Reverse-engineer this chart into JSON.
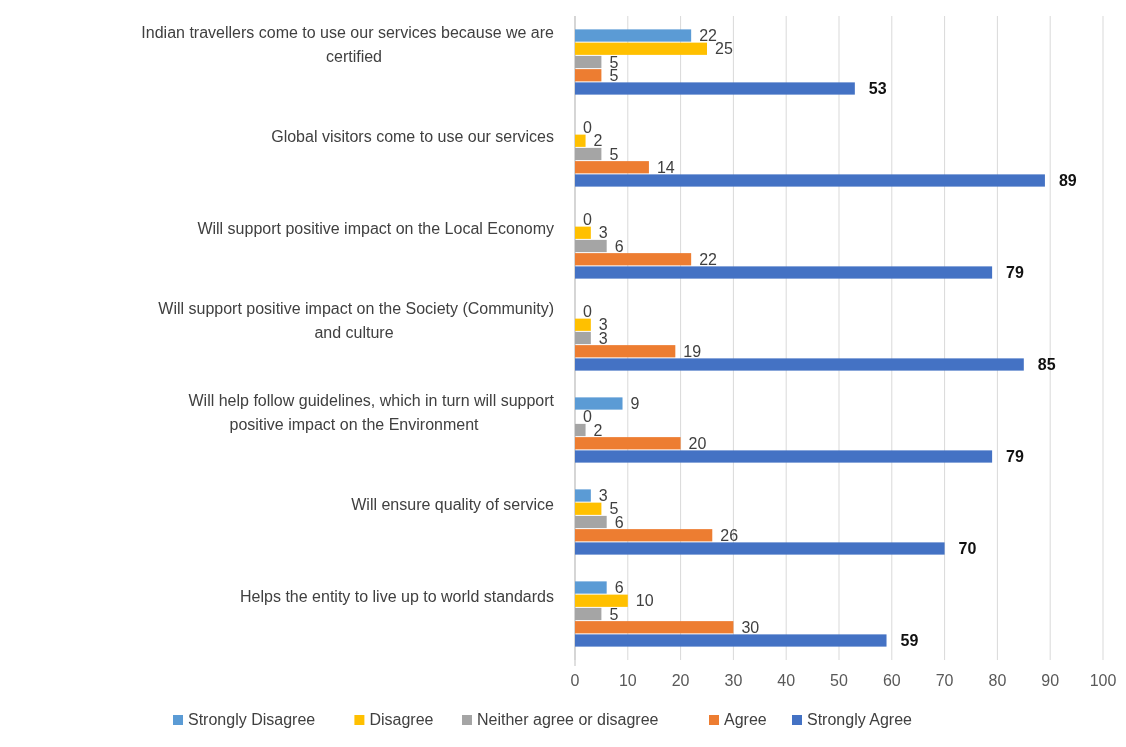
{
  "chart_data": {
    "type": "bar",
    "orientation": "horizontal",
    "categories": [
      "Indian travellers come to use our services because we are certified",
      "Global visitors come to use our services",
      "Will support positive impact on the Local Economy",
      "Will support positive impact on the Society (Community) and culture",
      "Will help follow guidelines, which in turn will support positive impact on the Environment",
      "Will ensure quality of service",
      "Helps the entity to live up to world standards"
    ],
    "series": [
      {
        "name": "Strongly Disagree",
        "color": "#5b9bd5",
        "values": [
          22,
          0,
          0,
          0,
          9,
          3,
          6
        ]
      },
      {
        "name": "Disagree",
        "color": "#ffc000",
        "values": [
          25,
          2,
          3,
          3,
          0,
          5,
          10
        ]
      },
      {
        "name": "Neither agree or disagree",
        "color": "#a5a5a5",
        "values": [
          5,
          5,
          6,
          3,
          2,
          6,
          5
        ]
      },
      {
        "name": "Agree",
        "color": "#ed7d31",
        "values": [
          5,
          14,
          22,
          19,
          20,
          26,
          30
        ]
      },
      {
        "name": "Strongly Agree",
        "color": "#4472c4",
        "values": [
          53,
          89,
          79,
          85,
          79,
          70,
          59
        ]
      }
    ],
    "xlim": [
      0,
      100
    ],
    "xticks": [
      0,
      10,
      20,
      30,
      40,
      50,
      60,
      70,
      80,
      90,
      100
    ],
    "grid": "x",
    "data_labels": true,
    "legend": "bottom"
  }
}
